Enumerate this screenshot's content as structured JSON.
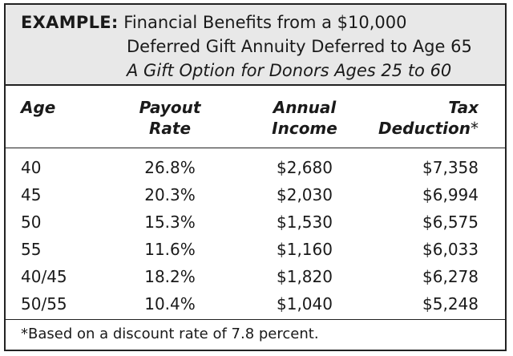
{
  "header": {
    "lead": "EXAMPLE:",
    "line1": "Financial Benefits from a $10,000",
    "line2": "Deferred Gift Annuity Deferred to Age 65",
    "line3": "A Gift Option for Donors Ages 25 to 60"
  },
  "columns": {
    "age": "Age",
    "rate_1": "Payout",
    "rate_2": "Rate",
    "income_1": "Annual",
    "income_2": "Income",
    "tax_1": "Tax",
    "tax_2": "Deduction",
    "tax_marker": "*"
  },
  "rows": [
    {
      "age": "40",
      "rate": "26.8%",
      "income": "$2,680",
      "deduction": "$7,358"
    },
    {
      "age": "45",
      "rate": "20.3%",
      "income": "$2,030",
      "deduction": "$6,994"
    },
    {
      "age": "50",
      "rate": "15.3%",
      "income": "$1,530",
      "deduction": "$6,575"
    },
    {
      "age": "55",
      "rate": "11.6%",
      "income": "$1,160",
      "deduction": "$6,033"
    },
    {
      "age": "40/45",
      "rate": "18.2%",
      "income": "$1,820",
      "deduction": "$6,278"
    },
    {
      "age": "50/55",
      "rate": "10.4%",
      "income": "$1,040",
      "deduction": "$5,248"
    }
  ],
  "footnote": "*Based on a discount rate of 7.8 percent."
}
